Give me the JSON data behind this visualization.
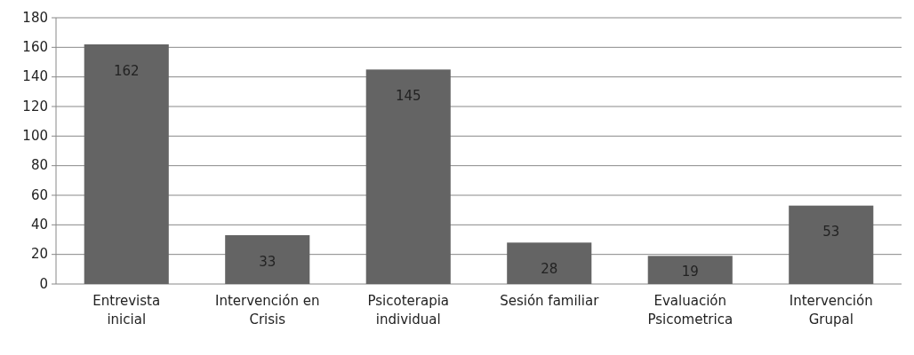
{
  "chart_data": {
    "type": "bar",
    "categories": [
      "Entrevista inicial",
      "Intervención en Crisis",
      "Psicoterapia individual",
      "Sesión familiar",
      "Evaluación Psicometrica",
      "Intervención Grupal"
    ],
    "values": [
      162,
      33,
      145,
      28,
      19,
      53
    ],
    "color": "#646464",
    "ylim": [
      0,
      180
    ],
    "yticks": [
      0,
      20,
      40,
      60,
      80,
      100,
      120,
      140,
      160,
      180
    ],
    "grid": "y",
    "data_labels": true
  }
}
